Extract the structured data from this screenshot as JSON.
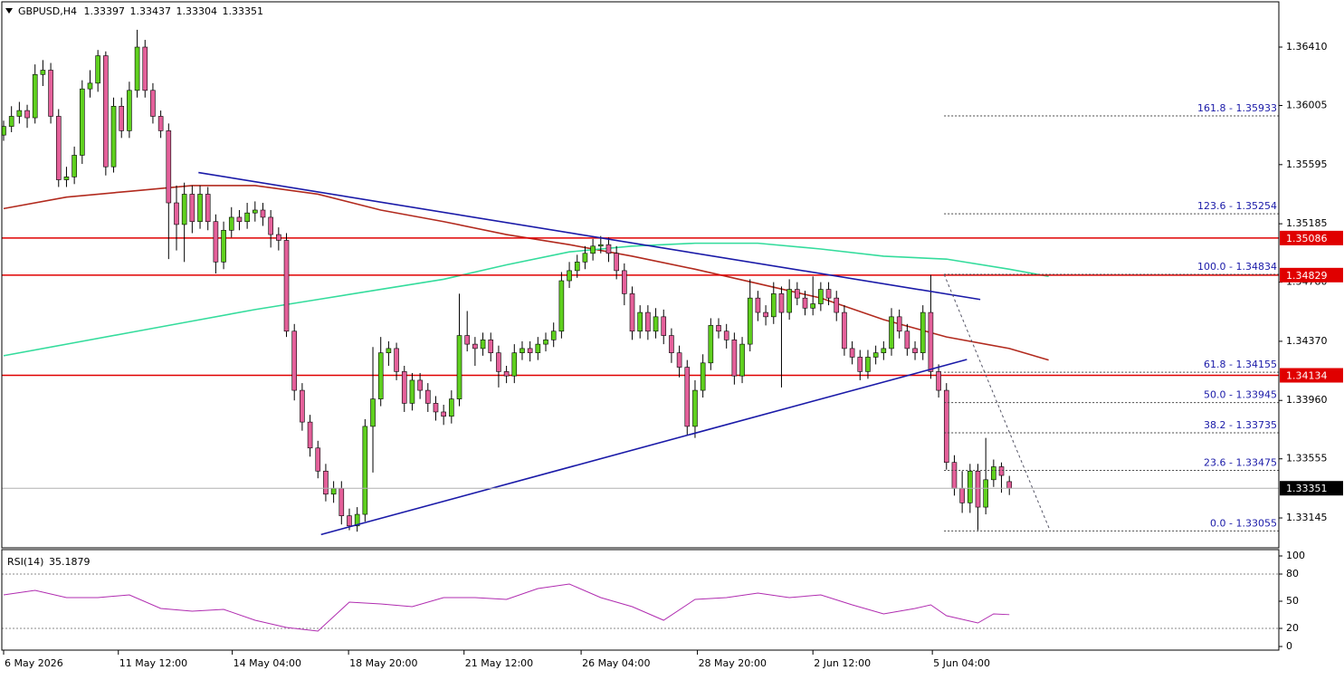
{
  "chart_data": {
    "type": "candlestick",
    "symbol": "GBPUSD,H4",
    "up_color": "#5fd01e",
    "down_color": "#e4609a",
    "xlim": [
      -0.23,
      162.3
    ],
    "ylim": [
      1.32938,
      1.36724
    ],
    "yticks": [
      {
        "value": 1.3641,
        "label": "1.36410"
      },
      1.36005,
      1.35595,
      1.35185,
      {
        "value": 1.3478,
        "label": "1.34780"
      },
      {
        "value": 1.3437,
        "label": "1.34370"
      },
      {
        "value": 1.3396,
        "label": "1.33960"
      },
      1.33555,
      1.33145
    ],
    "xticks": [
      {
        "value": 0,
        "label": "6 May 2026"
      },
      {
        "value": 14.6,
        "label": "11 May 12:00"
      },
      {
        "value": 29.1,
        "label": "14 May 04:00"
      },
      {
        "value": 43.9,
        "label": "18 May 20:00"
      },
      {
        "value": 58.6,
        "label": "21 May 12:00"
      },
      {
        "value": 73.5,
        "label": "26 May 04:00"
      },
      {
        "value": 88.3,
        "label": "28 May 20:00"
      },
      {
        "value": 103,
        "label": "2 Jun 12:00"
      },
      {
        "value": 118.2,
        "label": "5 Jun 04:00"
      }
    ],
    "ohlc": [
      [
        1.358,
        1.359,
        1.3576,
        1.3586
      ],
      [
        1.3586,
        1.36,
        1.3582,
        1.3593
      ],
      [
        1.3593,
        1.3603,
        1.3588,
        1.3597
      ],
      [
        1.3597,
        1.3601,
        1.3585,
        1.3592
      ],
      [
        1.3592,
        1.3629,
        1.3588,
        1.3622
      ],
      [
        1.3622,
        1.3632,
        1.3614,
        1.3625
      ],
      [
        1.3625,
        1.363,
        1.3588,
        1.3593
      ],
      [
        1.3593,
        1.3598,
        1.3544,
        1.3549
      ],
      [
        1.3549,
        1.3558,
        1.3544,
        1.3551
      ],
      [
        1.3551,
        1.3572,
        1.3546,
        1.3566
      ],
      [
        1.3566,
        1.3618,
        1.356,
        1.3612
      ],
      [
        1.3612,
        1.3625,
        1.3606,
        1.3616
      ],
      [
        1.3616,
        1.3639,
        1.361,
        1.3635
      ],
      [
        1.3635,
        1.3638,
        1.3552,
        1.3558
      ],
      [
        1.3558,
        1.3606,
        1.3554,
        1.36
      ],
      [
        1.36,
        1.3606,
        1.3578,
        1.3583
      ],
      [
        1.3583,
        1.3617,
        1.3578,
        1.3611
      ],
      [
        1.3611,
        1.3653,
        1.3606,
        1.3641
      ],
      [
        1.3641,
        1.3646,
        1.3606,
        1.3611
      ],
      [
        1.3611,
        1.3616,
        1.3588,
        1.3593
      ],
      [
        1.3593,
        1.3597,
        1.3578,
        1.3583
      ],
      [
        1.3583,
        1.3588,
        1.3494,
        1.3533
      ],
      [
        1.3533,
        1.3545,
        1.35,
        1.3518
      ],
      [
        1.3518,
        1.3547,
        1.3492,
        1.3539
      ],
      [
        1.3539,
        1.3545,
        1.3512,
        1.352
      ],
      [
        1.352,
        1.3545,
        1.3515,
        1.3539
      ],
      [
        1.3539,
        1.3544,
        1.3514,
        1.352
      ],
      [
        1.352,
        1.3525,
        1.3484,
        1.3492
      ],
      [
        1.3492,
        1.352,
        1.3487,
        1.3514
      ],
      [
        1.3514,
        1.353,
        1.3509,
        1.3523
      ],
      [
        1.3523,
        1.3528,
        1.3514,
        1.352
      ],
      [
        1.352,
        1.3533,
        1.3515,
        1.3526
      ],
      [
        1.3526,
        1.3534,
        1.352,
        1.3528
      ],
      [
        1.3528,
        1.3533,
        1.3517,
        1.3523
      ],
      [
        1.3523,
        1.3528,
        1.3502,
        1.3511
      ],
      [
        1.3511,
        1.3516,
        1.35,
        1.3507
      ],
      [
        1.3507,
        1.3512,
        1.344,
        1.3444
      ],
      [
        1.3444,
        1.3449,
        1.3396,
        1.3403
      ],
      [
        1.3403,
        1.3408,
        1.3375,
        1.3381
      ],
      [
        1.3381,
        1.3386,
        1.3357,
        1.3363
      ],
      [
        1.3363,
        1.3368,
        1.3342,
        1.3347
      ],
      [
        1.3347,
        1.3352,
        1.3326,
        1.3331
      ],
      [
        1.3331,
        1.334,
        1.3325,
        1.3335
      ],
      [
        1.3335,
        1.334,
        1.331,
        1.3316
      ],
      [
        1.3316,
        1.3321,
        1.3306,
        1.3309
      ],
      [
        1.3309,
        1.3322,
        1.3305,
        1.3317
      ],
      [
        1.3317,
        1.3383,
        1.3312,
        1.3378
      ],
      [
        1.3378,
        1.3433,
        1.3346,
        1.3397
      ],
      [
        1.3397,
        1.344,
        1.3392,
        1.3429
      ],
      [
        1.3429,
        1.3437,
        1.342,
        1.3432
      ],
      [
        1.3432,
        1.3436,
        1.341,
        1.3416
      ],
      [
        1.3416,
        1.342,
        1.3388,
        1.3394
      ],
      [
        1.3394,
        1.3415,
        1.3389,
        1.341
      ],
      [
        1.341,
        1.3415,
        1.3397,
        1.3403
      ],
      [
        1.3403,
        1.3408,
        1.3388,
        1.3394
      ],
      [
        1.3394,
        1.3399,
        1.3382,
        1.3388
      ],
      [
        1.3388,
        1.3393,
        1.3379,
        1.3385
      ],
      [
        1.3385,
        1.3403,
        1.338,
        1.3397
      ],
      [
        1.3397,
        1.347,
        1.3392,
        1.3441
      ],
      [
        1.3441,
        1.3458,
        1.343,
        1.3435
      ],
      [
        1.3435,
        1.344,
        1.342,
        1.3432
      ],
      [
        1.3432,
        1.3443,
        1.3427,
        1.3438
      ],
      [
        1.3438,
        1.3443,
        1.3423,
        1.3429
      ],
      [
        1.3429,
        1.3434,
        1.3405,
        1.3416
      ],
      [
        1.3416,
        1.342,
        1.3408,
        1.3413
      ],
      [
        1.3413,
        1.3435,
        1.3408,
        1.3429
      ],
      [
        1.3429,
        1.3437,
        1.3424,
        1.3432
      ],
      [
        1.3432,
        1.3437,
        1.3423,
        1.3429
      ],
      [
        1.3429,
        1.344,
        1.3424,
        1.3435
      ],
      [
        1.3435,
        1.3443,
        1.343,
        1.3438
      ],
      [
        1.3438,
        1.345,
        1.3433,
        1.3444
      ],
      [
        1.3444,
        1.3485,
        1.3439,
        1.3479
      ],
      [
        1.3479,
        1.3492,
        1.3474,
        1.3486
      ],
      [
        1.3486,
        1.3497,
        1.3481,
        1.3492
      ],
      [
        1.3492,
        1.3503,
        1.3487,
        1.3498
      ],
      [
        1.3498,
        1.3508,
        1.3493,
        1.3503
      ],
      [
        1.3503,
        1.351,
        1.3498,
        1.3504
      ],
      [
        1.3504,
        1.3509,
        1.3492,
        1.3498
      ],
      [
        1.3498,
        1.3503,
        1.348,
        1.3486
      ],
      [
        1.3486,
        1.3491,
        1.3462,
        1.347
      ],
      [
        1.347,
        1.3475,
        1.3438,
        1.3444
      ],
      [
        1.3444,
        1.3462,
        1.3439,
        1.3457
      ],
      [
        1.3457,
        1.3462,
        1.3438,
        1.3444
      ],
      [
        1.3444,
        1.346,
        1.3439,
        1.3454
      ],
      [
        1.3454,
        1.3459,
        1.3435,
        1.3441
      ],
      [
        1.3441,
        1.3446,
        1.3422,
        1.3429
      ],
      [
        1.3429,
        1.3434,
        1.3412,
        1.3419
      ],
      [
        1.3419,
        1.3424,
        1.3372,
        1.3378
      ],
      [
        1.3378,
        1.341,
        1.337,
        1.3403
      ],
      [
        1.3403,
        1.3428,
        1.3398,
        1.3422
      ],
      [
        1.3422,
        1.3453,
        1.3417,
        1.3448
      ],
      [
        1.3448,
        1.3453,
        1.3439,
        1.3444
      ],
      [
        1.3444,
        1.3449,
        1.3432,
        1.3438
      ],
      [
        1.3438,
        1.3443,
        1.3407,
        1.3413
      ],
      [
        1.3413,
        1.344,
        1.3408,
        1.3435
      ],
      [
        1.3435,
        1.348,
        1.343,
        1.3467
      ],
      [
        1.3467,
        1.3472,
        1.3451,
        1.3457
      ],
      [
        1.3457,
        1.3462,
        1.3448,
        1.3454
      ],
      [
        1.3454,
        1.3478,
        1.3449,
        1.347
      ],
      [
        1.347,
        1.3475,
        1.3405,
        1.3457
      ],
      [
        1.3457,
        1.348,
        1.3452,
        1.3473
      ],
      [
        1.3473,
        1.3478,
        1.3462,
        1.3467
      ],
      [
        1.3467,
        1.3472,
        1.3455,
        1.346
      ],
      [
        1.346,
        1.3482,
        1.3455,
        1.3463
      ],
      [
        1.3463,
        1.3478,
        1.3458,
        1.3473
      ],
      [
        1.3473,
        1.3478,
        1.3462,
        1.3467
      ],
      [
        1.3467,
        1.3472,
        1.3451,
        1.3457
      ],
      [
        1.3457,
        1.3462,
        1.3427,
        1.3432
      ],
      [
        1.3432,
        1.3437,
        1.3421,
        1.3426
      ],
      [
        1.3426,
        1.3431,
        1.341,
        1.3416
      ],
      [
        1.3416,
        1.3431,
        1.3411,
        1.3426
      ],
      [
        1.3426,
        1.3434,
        1.3421,
        1.3429
      ],
      [
        1.3429,
        1.3437,
        1.3424,
        1.3432
      ],
      [
        1.3432,
        1.346,
        1.3427,
        1.3454
      ],
      [
        1.3454,
        1.3459,
        1.3439,
        1.3444
      ],
      [
        1.3444,
        1.3449,
        1.3427,
        1.3432
      ],
      [
        1.3432,
        1.3437,
        1.3424,
        1.3429
      ],
      [
        1.3429,
        1.3462,
        1.3424,
        1.3457
      ],
      [
        1.3457,
        1.3483,
        1.3411,
        1.3416
      ],
      [
        1.3416,
        1.3421,
        1.3398,
        1.3403
      ],
      [
        1.3403,
        1.3408,
        1.3348,
        1.3353
      ],
      [
        1.3353,
        1.3358,
        1.333,
        1.3335
      ],
      [
        1.3335,
        1.3347,
        1.3318,
        1.3325
      ],
      [
        1.3325,
        1.3352,
        1.3318,
        1.3347
      ],
      [
        1.3347,
        1.3352,
        1.3306,
        1.3322
      ],
      [
        1.3322,
        1.337,
        1.3317,
        1.3341
      ],
      [
        1.3341,
        1.3355,
        1.3336,
        1.335
      ],
      [
        1.335,
        1.3353,
        1.3332,
        1.3344
      ],
      [
        1.33397,
        1.33437,
        1.33304,
        1.33351
      ]
    ],
    "moving_averages": [
      {
        "color": "#b22a1e",
        "x": [
          0,
          8,
          16,
          24,
          32,
          40,
          48,
          56,
          64,
          72,
          80,
          88,
          96,
          104,
          112,
          120,
          128,
          133
        ],
        "values": [
          1.3529,
          1.3537,
          1.3541,
          1.3545,
          1.3545,
          1.3539,
          1.3528,
          1.352,
          1.3511,
          1.3504,
          1.3496,
          1.3487,
          1.3477,
          1.3467,
          1.3452,
          1.344,
          1.3432,
          1.3424
        ]
      },
      {
        "color": "#34dc9c",
        "x": [
          0,
          8,
          16,
          24,
          32,
          40,
          48,
          56,
          64,
          72,
          80,
          88,
          96,
          104,
          112,
          120,
          128,
          133
        ],
        "values": [
          1.3427,
          1.3435,
          1.3443,
          1.3451,
          1.3459,
          1.3466,
          1.3473,
          1.348,
          1.349,
          1.3499,
          1.3503,
          1.3505,
          1.3505,
          1.3501,
          1.3496,
          1.3494,
          1.3487,
          1.3482
        ]
      }
    ],
    "trendline_color": "#1a1aa8",
    "trendlines": [
      [
        24.8,
        1.3554,
        124.3,
        1.3466
      ],
      [
        40.4,
        1.3303,
        122.6,
        1.34244
      ]
    ],
    "hline_color": "#e00000",
    "hlines": [
      1.35086,
      1.34829,
      1.34134
    ],
    "fib": {
      "color": "#1a1aa8",
      "anchor": [
        119.7,
        1.34834,
        133.2,
        1.33055
      ],
      "levels": [
        {
          "label": "161.8 - 1.35933",
          "price": 1.35933
        },
        {
          "label": "123.6 - 1.35254",
          "price": 1.35254
        },
        {
          "label": "100.0 - 1.34834",
          "price": 1.34834
        },
        {
          "label": "61.8 - 1.34155",
          "price": 1.34155
        },
        {
          "label": "50.0 - 1.33945",
          "price": 1.33945
        },
        {
          "label": "38.2 - 1.33735",
          "price": 1.33735
        },
        {
          "label": "23.6 - 1.33475",
          "price": 1.33475
        },
        {
          "label": "0.0 - 1.33055",
          "price": 1.33055
        }
      ]
    },
    "rsi": {
      "name": "RSI(14)",
      "color": "#b02cb0",
      "ylim": [
        0,
        100
      ],
      "yticks": [
        100,
        80,
        50,
        20,
        0
      ],
      "levels": [
        80,
        20
      ],
      "x": [
        0,
        4,
        8,
        12,
        16,
        20,
        24,
        28,
        32,
        36,
        40,
        44,
        48,
        52,
        56,
        60,
        64,
        68,
        72,
        76,
        80,
        84,
        88,
        92,
        96,
        100,
        104,
        108,
        112,
        116,
        118,
        120,
        124,
        126,
        128
      ],
      "values": [
        57,
        62,
        54,
        54,
        57,
        42,
        39,
        41,
        29,
        21,
        17,
        49,
        47,
        44,
        54,
        54,
        52,
        64,
        69,
        54,
        44,
        29,
        52,
        54,
        59,
        54,
        57,
        46,
        36,
        42,
        46,
        34,
        26,
        36,
        35.1879
      ]
    }
  }
}
